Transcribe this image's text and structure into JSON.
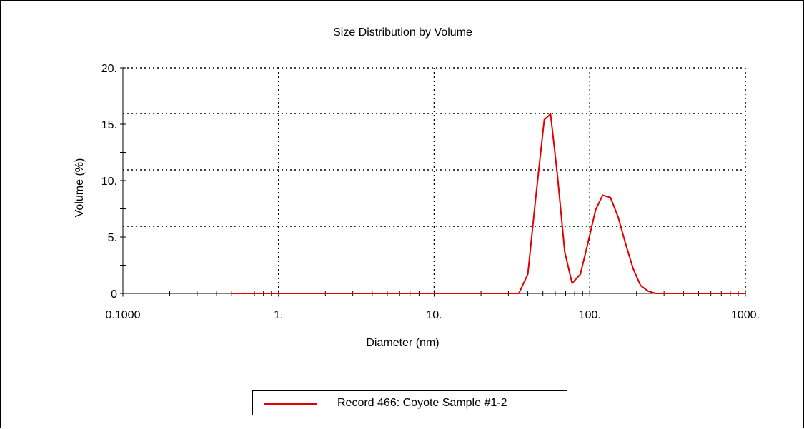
{
  "colors": {
    "series": "#e00000",
    "axis": "#000000",
    "grid": "#000000",
    "background": "#ffffff"
  },
  "chart_data": {
    "type": "line",
    "title": "Size Distribution by Volume",
    "xlabel": "Diameter (nm)",
    "ylabel": "Volume (%)",
    "x_scale": "log",
    "xlim": [
      0.1,
      1000
    ],
    "ylim": [
      0,
      20
    ],
    "x_ticks": [
      0.1,
      1,
      10,
      100,
      1000
    ],
    "x_tick_labels": [
      "0.1000",
      "1.",
      "10.",
      "100.",
      "1000."
    ],
    "y_ticks": [
      0,
      5,
      10,
      15,
      20
    ],
    "y_tick_labels": [
      "0",
      "5.",
      "10.",
      "15.",
      "20."
    ],
    "grid": true,
    "legend_position": "bottom-center",
    "series": [
      {
        "name": "Record 466: Coyote Sample #1-2",
        "x": [
          0.5,
          1,
          5,
          10,
          20,
          30,
          35,
          40,
          45,
          51,
          56,
          62,
          69,
          77,
          87,
          97,
          109,
          121,
          136,
          152,
          170,
          190,
          212,
          237,
          265,
          300,
          400,
          600,
          1000
        ],
        "y": [
          0,
          0,
          0,
          0,
          0,
          0,
          0,
          1.7,
          8.5,
          15.4,
          15.9,
          10.5,
          3.7,
          0.9,
          1.7,
          4.4,
          7.4,
          8.7,
          8.5,
          6.8,
          4.4,
          2.2,
          0.7,
          0.2,
          0,
          0,
          0,
          0,
          0
        ]
      }
    ]
  }
}
